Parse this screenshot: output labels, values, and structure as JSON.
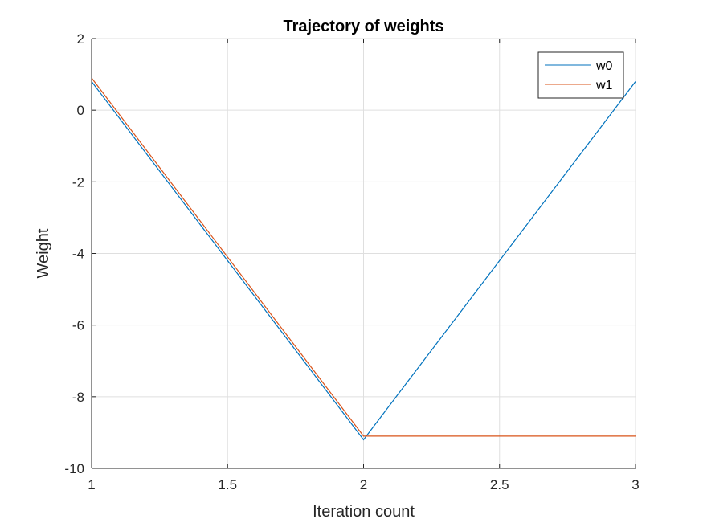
{
  "chart_data": {
    "type": "line",
    "title": "Trajectory of weights",
    "xlabel": "Iteration count",
    "ylabel": "Weight",
    "xlim": [
      1,
      3
    ],
    "ylim": [
      -10,
      2
    ],
    "x_ticks": [
      1,
      1.5,
      2,
      2.5,
      3
    ],
    "x_tick_labels": [
      "1",
      "1.5",
      "2",
      "2.5",
      "3"
    ],
    "y_ticks": [
      -10,
      -8,
      -6,
      -4,
      -2,
      0,
      2
    ],
    "y_tick_labels": [
      "-10",
      "-8",
      "-6",
      "-4",
      "-2",
      "0",
      "2"
    ],
    "grid": true,
    "legend_position": "top-right",
    "x": [
      1,
      2,
      3
    ],
    "series": [
      {
        "name": "w0",
        "color": "#0072BD",
        "values": [
          0.8,
          -9.2,
          0.8
        ]
      },
      {
        "name": "w1",
        "color": "#D95319",
        "values": [
          0.9,
          -9.1,
          -9.1
        ]
      }
    ]
  }
}
